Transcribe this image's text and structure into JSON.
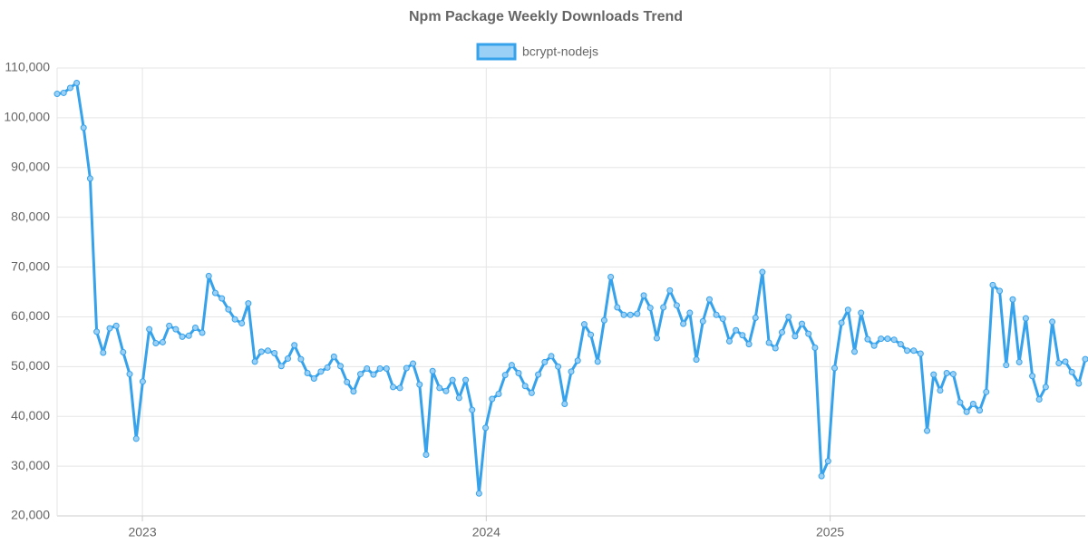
{
  "chart_data": {
    "type": "line",
    "title": "Npm Package Weekly Downloads Trend",
    "x": [
      2022.752,
      2022.771,
      2022.79,
      2022.809,
      2022.829,
      2022.848,
      2022.867,
      2022.886,
      2022.905,
      2022.924,
      2022.944,
      2022.963,
      2022.982,
      2023.001,
      2023.02,
      2023.039,
      2023.059,
      2023.078,
      2023.097,
      2023.116,
      2023.135,
      2023.154,
      2023.174,
      2023.193,
      2023.212,
      2023.231,
      2023.25,
      2023.269,
      2023.289,
      2023.308,
      2023.327,
      2023.346,
      2023.365,
      2023.384,
      2023.404,
      2023.423,
      2023.442,
      2023.461,
      2023.48,
      2023.499,
      2023.519,
      2023.538,
      2023.557,
      2023.576,
      2023.595,
      2023.614,
      2023.634,
      2023.653,
      2023.672,
      2023.691,
      2023.71,
      2023.729,
      2023.749,
      2023.768,
      2023.787,
      2023.806,
      2023.825,
      2023.844,
      2023.864,
      2023.883,
      2023.902,
      2023.921,
      2023.94,
      2023.959,
      2023.979,
      2023.998,
      2024.017,
      2024.036,
      2024.055,
      2024.074,
      2024.094,
      2024.113,
      2024.132,
      2024.151,
      2024.17,
      2024.189,
      2024.209,
      2024.228,
      2024.247,
      2024.266,
      2024.285,
      2024.304,
      2024.324,
      2024.343,
      2024.362,
      2024.381,
      2024.4,
      2024.419,
      2024.439,
      2024.458,
      2024.477,
      2024.496,
      2024.515,
      2024.534,
      2024.554,
      2024.573,
      2024.592,
      2024.611,
      2024.63,
      2024.649,
      2024.669,
      2024.688,
      2024.707,
      2024.726,
      2024.745,
      2024.764,
      2024.783,
      2024.803,
      2024.822,
      2024.841,
      2024.86,
      2024.879,
      2024.898,
      2024.918,
      2024.937,
      2024.956,
      2024.975,
      2024.994,
      2025.013,
      2025.033,
      2025.052,
      2025.071,
      2025.09,
      2025.109,
      2025.128,
      2025.148,
      2025.167,
      2025.186,
      2025.205,
      2025.224,
      2025.243,
      2025.263,
      2025.282,
      2025.301,
      2025.32,
      2025.339,
      2025.358,
      2025.378,
      2025.397,
      2025.416,
      2025.435,
      2025.454,
      2025.473,
      2025.493,
      2025.512,
      2025.531,
      2025.55,
      2025.569,
      2025.588,
      2025.608,
      2025.627,
      2025.646,
      2025.665,
      2025.684,
      2025.703,
      2025.723,
      2025.742
    ],
    "series": [
      {
        "name": "bcrypt-nodejs",
        "color": "#36a2eb",
        "fill": "#9ad0f5",
        "values": [
          104800,
          105000,
          106000,
          107000,
          98000,
          87800,
          57000,
          52800,
          57700,
          58200,
          52900,
          48500,
          35500,
          47000,
          57500,
          54700,
          54900,
          58200,
          57500,
          56000,
          56200,
          57800,
          56800,
          68200,
          64800,
          63700,
          61500,
          59500,
          58700,
          62700,
          51000,
          53000,
          53200,
          52700,
          50100,
          51600,
          54300,
          51500,
          48700,
          47600,
          49000,
          49800,
          52000,
          50100,
          46900,
          45000,
          48500,
          49600,
          48400,
          49600,
          49600,
          45900,
          45700,
          49700,
          50600,
          46400,
          32300,
          49100,
          45700,
          45100,
          47300,
          43700,
          47300,
          41300,
          24500,
          37700,
          43500,
          44500,
          48300,
          50300,
          48700,
          46100,
          44700,
          48400,
          50900,
          52100,
          50000,
          42500,
          49000,
          51200,
          58500,
          56400,
          51000,
          59300,
          68000,
          61900,
          60400,
          60400,
          60600,
          64300,
          61800,
          55700,
          61900,
          65300,
          62300,
          58600,
          60800,
          51400,
          59100,
          63500,
          60400,
          59600,
          55100,
          57300,
          56300,
          54500,
          59800,
          69000,
          54800,
          53700,
          56900,
          60000,
          56100,
          58600,
          56600,
          53800,
          28000,
          31000,
          49700,
          58800,
          61400,
          53000,
          60800,
          55500,
          54200,
          55600,
          55600,
          55400,
          54500,
          53200,
          53200,
          52600,
          37100,
          48400,
          45200,
          48700,
          48500,
          42800,
          40900,
          42500,
          41200,
          44900,
          66400,
          65200,
          50300,
          63500,
          50900,
          59700,
          48100,
          43400,
          45900,
          59000,
          50700,
          51000,
          48900,
          46600,
          51500
        ]
      }
    ],
    "xlim": [
      2022.752,
      2025.742
    ],
    "xticks": [
      2023,
      2024,
      2025
    ],
    "ylim": [
      20000,
      110000
    ],
    "yticks": [
      {
        "value": 20000,
        "label": "20,000"
      },
      {
        "value": 30000,
        "label": "30,000"
      },
      {
        "value": 40000,
        "label": "40,000"
      },
      {
        "value": 50000,
        "label": "50,000"
      },
      {
        "value": 60000,
        "label": "60,000"
      },
      {
        "value": 70000,
        "label": "70,000"
      },
      {
        "value": 80000,
        "label": "80,000"
      },
      {
        "value": 90000,
        "label": "90,000"
      },
      {
        "value": 100000,
        "label": "100,000"
      },
      {
        "value": 110000,
        "label": "110,000"
      }
    ],
    "grid": true,
    "legend": "top"
  }
}
